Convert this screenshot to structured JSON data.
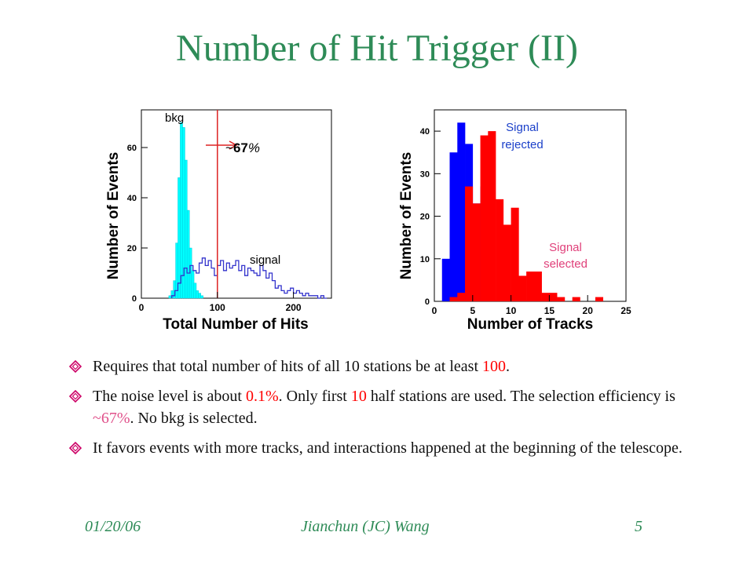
{
  "slide": {
    "title": "Number of Hit Trigger (II)"
  },
  "chart_data": [
    {
      "type": "bar",
      "subtype": "histogram",
      "xlabel": "Total Number of Hits",
      "ylabel": "Number of Events",
      "xlim": [
        0,
        250
      ],
      "ylim": [
        0,
        75
      ],
      "xticks": [
        "0",
        "100",
        "200"
      ],
      "yticks": [
        "0",
        "20",
        "40",
        "60"
      ],
      "annotations": {
        "bkg_label": "bkg",
        "signal_label": "signal",
        "cut_label_prefix": "~",
        "cut_label_value": "67",
        "cut_label_suffix": "%",
        "cut_value": 100
      },
      "series": [
        {
          "name": "bkg",
          "color": "#00ffff",
          "bin_width": 3,
          "x": [
            36,
            39,
            42,
            45,
            48,
            51,
            54,
            57,
            60,
            63,
            66,
            69,
            72,
            75,
            78,
            81
          ],
          "values": [
            1,
            3,
            7,
            22,
            48,
            70,
            68,
            55,
            35,
            20,
            11,
            6,
            3,
            2,
            1,
            0
          ]
        },
        {
          "name": "signal",
          "color": "#3333cc",
          "bin_width": 4,
          "x": [
            40,
            44,
            48,
            52,
            56,
            60,
            64,
            68,
            72,
            76,
            80,
            84,
            88,
            92,
            96,
            100,
            104,
            108,
            112,
            116,
            120,
            124,
            128,
            132,
            136,
            140,
            144,
            148,
            152,
            156,
            160,
            164,
            168,
            172,
            176,
            180,
            184,
            188,
            192,
            196,
            200,
            204,
            208,
            212,
            216,
            220,
            224,
            228,
            232,
            236,
            240
          ],
          "values": [
            1,
            3,
            6,
            9,
            12,
            10,
            13,
            11,
            10,
            14,
            16,
            13,
            15,
            12,
            9,
            13,
            15,
            11,
            14,
            12,
            13,
            15,
            11,
            13,
            9,
            12,
            11,
            10,
            9,
            13,
            11,
            8,
            10,
            7,
            4,
            5,
            3,
            2,
            3,
            4,
            2,
            3,
            2,
            1,
            2,
            1,
            1,
            1,
            0,
            1,
            0
          ]
        }
      ]
    },
    {
      "type": "bar",
      "subtype": "histogram",
      "xlabel": "Number of Tracks",
      "ylabel": "Number of Events",
      "xlim": [
        0,
        25
      ],
      "ylim": [
        0,
        45
      ],
      "xticks": [
        "0",
        "5",
        "10",
        "15",
        "20",
        "25"
      ],
      "yticks": [
        "0",
        "10",
        "20",
        "30",
        "40"
      ],
      "annotations": {
        "rejected_label_line1": "Signal",
        "rejected_label_line2": "rejected",
        "selected_label_line1": "Signal",
        "selected_label_line2": "selected"
      },
      "series": [
        {
          "name": "Signal rejected",
          "color": "#0000ff",
          "bin_width": 1,
          "x": [
            1,
            2,
            3,
            4,
            5,
            6
          ],
          "values": [
            10,
            35,
            42,
            37,
            23,
            27
          ]
        },
        {
          "name": "Signal selected",
          "color": "#ff0000",
          "bin_width": 1,
          "x": [
            2,
            3,
            4,
            5,
            6,
            7,
            8,
            9,
            10,
            11,
            12,
            13,
            14,
            15,
            16,
            17,
            18,
            19,
            20,
            21
          ],
          "values": [
            1,
            2,
            27,
            23,
            39,
            40,
            24,
            18,
            22,
            6,
            7,
            7,
            2,
            2,
            1,
            0,
            1,
            0,
            0,
            1
          ]
        }
      ]
    }
  ],
  "bullets": [
    {
      "parts": [
        {
          "text": "Requires that total number of hits of all 10 stations be at least ",
          "color": "black"
        },
        {
          "text": "100",
          "color": "red"
        },
        {
          "text": ".",
          "color": "black"
        }
      ]
    },
    {
      "parts": [
        {
          "text": "The noise level is about ",
          "color": "black"
        },
        {
          "text": "0.1%",
          "color": "red"
        },
        {
          "text": ". Only first ",
          "color": "black"
        },
        {
          "text": "10",
          "color": "red"
        },
        {
          "text": " half stations are used. The selection efficiency is ",
          "color": "black"
        },
        {
          "text": "~67%",
          "color": "pink"
        },
        {
          "text": ". No bkg is selected.",
          "color": "black"
        }
      ]
    },
    {
      "parts": [
        {
          "text": "It favors events with more tracks, and interactions happened at the beginning of the telescope.",
          "color": "black"
        }
      ]
    }
  ],
  "footer": {
    "date": "01/20/06",
    "author": "Jianchun (JC) Wang",
    "page": "5"
  },
  "colors": {
    "title": "#2e8b57",
    "bullet_mark": "#cc0066",
    "footer": "#2e8b57",
    "cut_line": "#dd2222",
    "label_blue": "#1a3fc9",
    "label_pink": "#e0407a"
  }
}
